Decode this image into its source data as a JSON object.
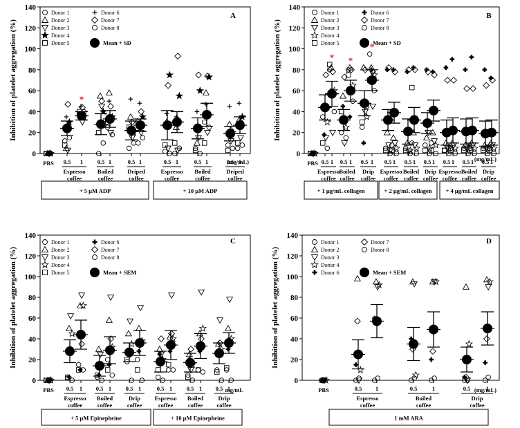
{
  "chart_data": [
    {
      "panel": "A",
      "type": "scatter",
      "ylabel": "Inhibition of platelet aggregation (%)",
      "ylim": [
        0,
        140
      ],
      "yticks": [
        0,
        20,
        40,
        60,
        80,
        100,
        120,
        140
      ],
      "dose_unit": "(mg/mL)",
      "categories": [
        {
          "dose": "",
          "sub": [
            "PBS"
          ]
        },
        {
          "dose": "0.5",
          "sub": [
            "Espresso",
            "coffee"
          ]
        },
        {
          "dose": "1",
          "sub": []
        },
        {
          "dose": "0.5",
          "sub": [
            "Boiled",
            "coffee"
          ]
        },
        {
          "dose": "1",
          "sub": []
        },
        {
          "dose": "0.5",
          "sub": [
            "Driped",
            "coffee"
          ]
        },
        {
          "dose": "1",
          "sub": []
        },
        {
          "dose": "0.5",
          "sub": [
            "Espresso",
            "coffee"
          ]
        },
        {
          "dose": "1",
          "sub": []
        },
        {
          "dose": "0.5",
          "sub": [
            "Boiled",
            "coffee"
          ]
        },
        {
          "dose": "1",
          "sub": []
        },
        {
          "dose": "0.5",
          "sub": [
            "Driped",
            "coffee"
          ]
        },
        {
          "dose": "1",
          "sub": []
        }
      ],
      "groups": [
        {
          "label": "+ 5 μM ADP",
          "from": 0,
          "to": 6
        },
        {
          "label": "+ 10 μM ADP",
          "from": 7,
          "to": 12
        }
      ],
      "legend": [
        {
          "label": "Donor 1",
          "marker": "circle"
        },
        {
          "label": "Donor 2",
          "marker": "triangle"
        },
        {
          "label": "Donor 3",
          "marker": "triangle-down"
        },
        {
          "label": "Donor 4",
          "marker": "filled-star"
        },
        {
          "label": "Donor 5",
          "marker": "square"
        },
        {
          "label": "Donor 6",
          "marker": "plus"
        },
        {
          "label": "Donor 7",
          "marker": "diamond"
        },
        {
          "label": "Donor 8",
          "marker": "circle"
        },
        {
          "label": "Mean + SD",
          "marker": "big-dot"
        }
      ],
      "means": [
        0,
        24,
        36,
        28,
        33,
        22,
        27,
        27,
        30,
        24,
        37,
        19,
        27
      ],
      "errors": [
        0,
        7,
        4,
        10,
        8,
        9,
        6,
        14,
        10,
        10,
        11,
        7,
        8
      ],
      "points": [
        [
          0,
          0,
          0,
          0,
          0,
          0,
          0,
          0
        ],
        [
          12,
          5,
          3,
          30,
          8,
          35,
          47,
          15
        ],
        [
          38,
          36,
          30,
          35,
          40,
          45,
          44,
          40
        ],
        [
          0,
          55,
          45,
          40,
          20,
          30,
          50,
          10
        ],
        [
          25,
          58,
          20,
          35,
          30,
          50,
          45,
          18
        ],
        [
          5,
          35,
          15,
          20,
          25,
          52,
          30,
          10
        ],
        [
          10,
          28,
          20,
          35,
          30,
          48,
          40,
          15
        ],
        [
          2,
          30,
          5,
          75,
          8,
          38,
          65,
          0
        ],
        [
          0,
          25,
          3,
          55,
          10,
          35,
          93,
          5
        ],
        [
          5,
          10,
          15,
          60,
          3,
          40,
          75,
          0
        ],
        [
          30,
          58,
          20,
          73,
          10,
          47,
          74,
          25
        ],
        [
          8,
          28,
          12,
          20,
          3,
          45,
          22,
          5
        ],
        [
          5,
          32,
          15,
          35,
          10,
          48,
          30,
          8
        ]
      ],
      "significance": [
        {
          "category": 2,
          "mark": "*"
        }
      ]
    },
    {
      "panel": "B",
      "type": "scatter",
      "ylabel": "Inhibition of platelet aggregation (%)",
      "ylim": [
        0,
        140
      ],
      "yticks": [
        0,
        20,
        40,
        60,
        80,
        100,
        120,
        140
      ],
      "dose_unit": "(mg/mL)",
      "categories": [
        {
          "dose": "",
          "sub": [
            "PBS"
          ]
        },
        {
          "dose": "0.5",
          "sub": [
            "Espresso",
            "coffee"
          ]
        },
        {
          "dose": "1",
          "sub": []
        },
        {
          "dose": "0.5",
          "sub": [
            "Boiled",
            "coffee"
          ]
        },
        {
          "dose": "1",
          "sub": []
        },
        {
          "dose": "0.5",
          "sub": [
            "Drip",
            "coffee"
          ]
        },
        {
          "dose": "1",
          "sub": []
        },
        {
          "dose": "0.5",
          "sub": [
            "Espresso",
            "coffee"
          ]
        },
        {
          "dose": "1",
          "sub": []
        },
        {
          "dose": "0.5",
          "sub": [
            "Boiled",
            "coffee"
          ]
        },
        {
          "dose": "1",
          "sub": []
        },
        {
          "dose": "0.5",
          "sub": [
            "Drip",
            "coffee"
          ]
        },
        {
          "dose": "1",
          "sub": []
        },
        {
          "dose": "0.5",
          "sub": [
            "Espresso",
            "coffee"
          ]
        },
        {
          "dose": "1",
          "sub": []
        },
        {
          "dose": "0.5",
          "sub": [
            "Boiled",
            "coffee"
          ]
        },
        {
          "dose": "1",
          "sub": []
        },
        {
          "dose": "0.5",
          "sub": [
            "Drip",
            "coffee"
          ]
        },
        {
          "dose": "1",
          "sub": []
        }
      ],
      "groups": [
        {
          "label": "+ 1 μg/mL collagen",
          "from": 0,
          "to": 6
        },
        {
          "label": "+ 2 μg/mL collagen",
          "from": 7,
          "to": 12
        },
        {
          "label": "+ 4 μg/mL collagen",
          "from": 13,
          "to": 18
        }
      ],
      "legend": [
        {
          "label": "Donor 1",
          "marker": "circle"
        },
        {
          "label": "Donor 2",
          "marker": "triangle"
        },
        {
          "label": "Donor 3",
          "marker": "triangle-down"
        },
        {
          "label": "Donor 4",
          "marker": "star"
        },
        {
          "label": "Donor 5",
          "marker": "square"
        },
        {
          "label": "Donor 6",
          "marker": "cross-dot"
        },
        {
          "label": "Donor 7",
          "marker": "diamond"
        },
        {
          "label": "Donor 8",
          "marker": "circle"
        },
        {
          "label": "Mean + SD",
          "marker": "big-dot"
        }
      ],
      "means": [
        0,
        44,
        57,
        32,
        60,
        48,
        70,
        32,
        39,
        21,
        32,
        29,
        41,
        20,
        22,
        21,
        22,
        19,
        20
      ],
      "errors": [
        0,
        12,
        12,
        10,
        10,
        12,
        10,
        10,
        10,
        12,
        12,
        10,
        10,
        12,
        12,
        12,
        12,
        12,
        12
      ],
      "points": [
        [
          0,
          0,
          0,
          0,
          0,
          0,
          0,
          0
        ],
        [
          35,
          45,
          15,
          30,
          10,
          18,
          75,
          5
        ],
        [
          80,
          82,
          20,
          60,
          85,
          60,
          78,
          40
        ],
        [
          20,
          55,
          10,
          25,
          40,
          45,
          73,
          15
        ],
        [
          80,
          82,
          60,
          65,
          75,
          35,
          80,
          50
        ],
        [
          25,
          82,
          40,
          35,
          30,
          10,
          80,
          45
        ],
        [
          95,
          82,
          45,
          75,
          70,
          80,
          78,
          60
        ],
        [
          5,
          20,
          8,
          3,
          3,
          80,
          82,
          0
        ],
        [
          8,
          15,
          10,
          5,
          3,
          80,
          78,
          0
        ],
        [
          5,
          10,
          2,
          3,
          3,
          78,
          80,
          0
        ],
        [
          10,
          20,
          8,
          5,
          63,
          82,
          80,
          0
        ],
        [
          8,
          15,
          20,
          5,
          3,
          80,
          78,
          0
        ],
        [
          10,
          20,
          12,
          8,
          3,
          78,
          75,
          0
        ],
        [
          3,
          10,
          5,
          5,
          3,
          82,
          70,
          0
        ],
        [
          5,
          10,
          8,
          5,
          3,
          90,
          70,
          0
        ],
        [
          5,
          8,
          5,
          5,
          3,
          80,
          62,
          0
        ],
        [
          5,
          10,
          8,
          5,
          3,
          92,
          62,
          0
        ],
        [
          5,
          8,
          5,
          5,
          3,
          80,
          65,
          0
        ],
        [
          5,
          10,
          8,
          5,
          3,
          72,
          70,
          0
        ]
      ],
      "significance": [
        {
          "category": 2,
          "mark": "*"
        },
        {
          "category": 4,
          "mark": "*"
        },
        {
          "category": 6,
          "mark": "*"
        }
      ]
    },
    {
      "panel": "C",
      "type": "scatter",
      "ylabel": "Inhibition of platelet aggregation (%)",
      "ylim": [
        0,
        140
      ],
      "yticks": [
        0,
        20,
        40,
        60,
        80,
        100,
        120,
        140
      ],
      "dose_unit": "mg/mL",
      "categories": [
        {
          "dose": "",
          "sub": [
            "PBS"
          ]
        },
        {
          "dose": "0.5",
          "sub": [
            "Espresso",
            "coffee"
          ]
        },
        {
          "dose": "1",
          "sub": []
        },
        {
          "dose": "0.5",
          "sub": [
            "Boiled",
            "coffee"
          ]
        },
        {
          "dose": "1",
          "sub": []
        },
        {
          "dose": "0.5",
          "sub": [
            "Drip",
            "coffee"
          ]
        },
        {
          "dose": "1",
          "sub": []
        },
        {
          "dose": "0.5",
          "sub": [
            "Espresso",
            "coffee"
          ]
        },
        {
          "dose": "1",
          "sub": []
        },
        {
          "dose": "0.5",
          "sub": [
            "Boiled",
            "coffee"
          ]
        },
        {
          "dose": "1",
          "sub": []
        },
        {
          "dose": "0.5",
          "sub": [
            "Drip",
            "coffee"
          ]
        },
        {
          "dose": "1",
          "sub": []
        }
      ],
      "groups": [
        {
          "label": "+ 5 μM Epinepheine",
          "from": 0,
          "to": 6
        },
        {
          "label": "+ 10 μM Epinepheine",
          "from": 7,
          "to": 12
        }
      ],
      "legend": [
        {
          "label": "Donor 1",
          "marker": "circle"
        },
        {
          "label": "Donor 2",
          "marker": "triangle"
        },
        {
          "label": "Donor 3",
          "marker": "triangle-down"
        },
        {
          "label": "Donor 4",
          "marker": "star"
        },
        {
          "label": "Donor 5",
          "marker": "square"
        },
        {
          "label": "Donor 6",
          "marker": "cross-dot"
        },
        {
          "label": "Donor 7",
          "marker": "diamond"
        },
        {
          "label": "Donor 8",
          "marker": "circle"
        },
        {
          "label": "Mean + SEM",
          "marker": "big-dot"
        }
      ],
      "means": [
        0,
        28,
        44,
        14,
        29,
        27,
        36,
        18,
        34,
        17,
        33,
        26,
        36
      ],
      "errors": [
        0,
        11,
        14,
        10,
        13,
        9,
        12,
        10,
        14,
        9,
        12,
        10,
        10
      ],
      "points": [
        [
          0,
          0,
          0,
          0,
          0,
          0,
          0,
          0
        ],
        [
          2,
          50,
          62,
          45,
          3,
          3,
          30,
          0
        ],
        [
          15,
          72,
          82,
          72,
          10,
          10,
          35,
          10
        ],
        [
          3,
          30,
          25,
          15,
          5,
          5,
          15,
          0
        ],
        [
          20,
          58,
          80,
          32,
          10,
          15,
          40,
          5
        ],
        [
          18,
          45,
          57,
          35,
          20,
          25,
          25,
          0
        ],
        [
          20,
          50,
          70,
          38,
          10,
          28,
          35,
          0
        ],
        [
          3,
          30,
          25,
          20,
          10,
          25,
          40,
          0
        ],
        [
          10,
          42,
          82,
          40,
          15,
          28,
          45,
          10
        ],
        [
          5,
          25,
          10,
          15,
          3,
          20,
          30,
          0
        ],
        [
          10,
          45,
          85,
          50,
          10,
          28,
          40,
          8
        ],
        [
          10,
          35,
          58,
          30,
          8,
          28,
          36,
          0
        ],
        [
          10,
          50,
          78,
          40,
          12,
          30,
          38,
          0
        ]
      ],
      "significance": []
    },
    {
      "panel": "D",
      "type": "scatter",
      "ylabel": "Inhibition of platelet aggregation (%)",
      "ylim": [
        0,
        140
      ],
      "yticks": [
        0,
        20,
        40,
        60,
        80,
        100,
        120,
        140
      ],
      "dose_unit": "(mg/mL)",
      "categories": [
        {
          "dose": "",
          "sub": [
            "PBS"
          ]
        },
        {
          "dose": "0.5",
          "sub": [
            "Espresso",
            "coffee"
          ]
        },
        {
          "dose": "1",
          "sub": []
        },
        {
          "dose": "0.5",
          "sub": [
            "Boiled",
            "coffee"
          ]
        },
        {
          "dose": "1",
          "sub": []
        },
        {
          "dose": "0.5",
          "sub": [
            "Drip",
            "coffee"
          ]
        },
        {
          "dose": "1",
          "sub": []
        }
      ],
      "groups": [
        {
          "label": "1 mM ARA",
          "from": 0,
          "to": 6
        }
      ],
      "legend": [
        {
          "label": "Donor 1",
          "marker": "circle"
        },
        {
          "label": "Donor 2",
          "marker": "triangle"
        },
        {
          "label": "Donor 3",
          "marker": "triangle-down"
        },
        {
          "label": "Donor 4",
          "marker": "star"
        },
        {
          "label": "Donor 6",
          "marker": "cross-dot"
        },
        {
          "label": "Donor 7",
          "marker": "diamond"
        },
        {
          "label": "Donor 8",
          "marker": "circle"
        },
        {
          "label": "Mean + SEM",
          "marker": "big-dot"
        }
      ],
      "means": [
        0,
        25,
        57,
        35,
        49,
        20,
        50
      ],
      "errors": [
        0,
        14,
        16,
        16,
        17,
        12,
        16
      ],
      "points": [
        [
          0,
          0,
          0,
          0,
          0,
          0,
          0
        ],
        [
          0,
          98,
          0,
          10,
          15,
          57,
          2
        ],
        [
          0,
          95,
          90,
          92,
          60,
          58,
          2
        ],
        [
          0,
          95,
          93,
          5,
          40,
          30,
          2
        ],
        [
          0,
          95,
          95,
          95,
          20,
          28,
          2
        ],
        [
          0,
          90,
          0,
          35,
          3,
          3,
          0
        ],
        [
          0,
          97,
          90,
          95,
          17,
          40,
          3
        ]
      ],
      "significance": []
    }
  ],
  "panel_letters": [
    "A",
    "B",
    "C",
    "D"
  ]
}
